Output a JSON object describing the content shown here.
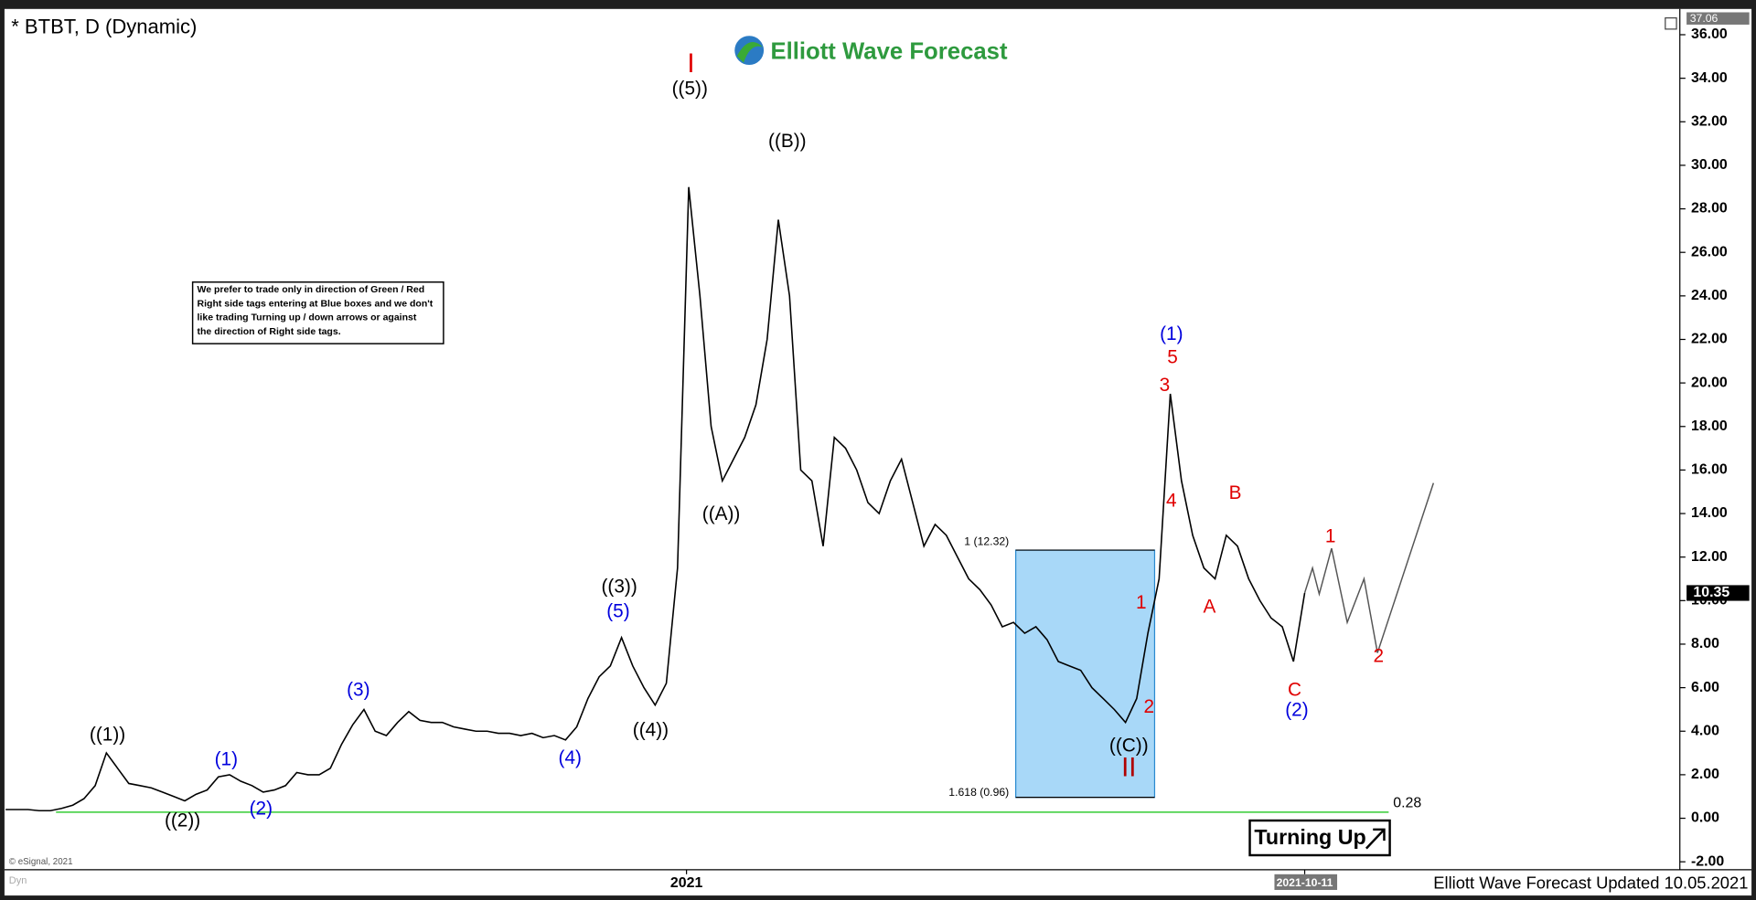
{
  "chart_data": {
    "type": "line",
    "title": "* BTBT, D (Dynamic)",
    "logo": "Elliott Wave Forecast",
    "footer": "Elliott Wave Forecast Updated 10.05.2021",
    "source": "© eSignal, 2021",
    "mode": "Dyn",
    "note": [
      "We prefer to trade only in direction of Green / Red",
      "Right side tags entering at Blue boxes and we don't",
      "like trading Turning up / down arrows or against",
      "the direction of Right side tags."
    ],
    "signal": "Turning Up",
    "xlim": [
      -0.5,
      149.5
    ],
    "xticks": [
      {
        "value": 60.8,
        "label": "2021"
      },
      {
        "value": 116,
        "label": "2021-10-11"
      }
    ],
    "ylim": [
      -2.3,
      37.06
    ],
    "yticks": [
      {
        "value": -2,
        "label": "-2.00"
      },
      {
        "value": 0,
        "label": "0.00"
      },
      {
        "value": 2,
        "label": "2.00"
      },
      {
        "value": 4,
        "label": "4.00"
      },
      {
        "value": 6,
        "label": "6.00"
      },
      {
        "value": 8,
        "label": "8.00"
      },
      {
        "value": 10,
        "label": "10.00"
      },
      {
        "value": 12,
        "label": "12.00"
      },
      {
        "value": 14,
        "label": "14.00"
      },
      {
        "value": 16,
        "label": "16.00"
      },
      {
        "value": 18,
        "label": "18.00"
      },
      {
        "value": 20,
        "label": "20.00"
      },
      {
        "value": 22,
        "label": "22.00"
      },
      {
        "value": 24,
        "label": "24.00"
      },
      {
        "value": 26,
        "label": "26.00"
      },
      {
        "value": 28,
        "label": "28.00"
      },
      {
        "value": 30,
        "label": "30.00"
      },
      {
        "value": 32,
        "label": "32.00"
      },
      {
        "value": 34,
        "label": "34.00"
      },
      {
        "value": 36,
        "label": "36.00"
      }
    ],
    "series": [
      {
        "color": "#000000",
        "values": [
          0.4,
          0.4,
          0.4,
          0.35,
          0.35,
          0.45,
          0.6,
          0.9,
          1.5,
          3.0,
          2.3,
          1.6,
          1.5,
          1.4,
          1.2,
          1.0,
          0.8,
          1.1,
          1.3,
          1.9,
          2.0,
          1.7,
          1.5,
          1.2,
          1.3,
          1.5,
          2.1,
          2.0,
          2.0,
          2.3,
          3.4,
          4.3,
          5.0,
          4.0,
          3.8,
          4.4,
          4.9,
          4.5,
          4.4,
          4.4,
          4.2,
          4.1,
          4.0,
          4.0,
          3.9,
          3.9,
          3.8,
          3.9,
          3.7,
          3.8,
          3.6,
          4.2,
          5.5,
          6.5,
          7.0,
          8.3,
          7.0,
          6.0,
          5.2,
          6.2,
          11.5,
          29.0,
          24.0,
          18.0,
          15.5,
          16.5,
          17.5,
          19.0,
          22.0,
          27.5,
          24.0,
          16.0,
          15.5,
          12.5,
          17.5,
          17.0,
          16.0,
          14.5,
          14.0,
          15.5,
          16.5,
          14.5,
          12.5,
          13.5,
          13.0,
          12.0,
          11.0,
          10.5,
          9.8,
          8.8,
          9.0,
          8.5,
          8.8,
          8.2,
          7.2,
          7.0,
          6.8,
          6.0,
          5.5,
          5.0,
          4.4,
          5.5,
          8.5,
          11.0,
          19.5,
          15.5,
          13.0,
          11.5,
          11.0,
          13.0,
          12.5,
          11.0,
          10.0,
          9.2,
          8.8,
          7.2,
          10.35
        ]
      },
      {
        "color": "#555555",
        "x": [
          116,
          116.7,
          117.3,
          118.4,
          119.8,
          121.3,
          122.5,
          127.5
        ],
        "values": [
          10.35,
          11.5,
          10.3,
          12.4,
          9.0,
          11.0,
          7.6,
          15.4
        ]
      }
    ],
    "hline": {
      "value": 0.28,
      "color": "#33cc33"
    },
    "fib_box": {
      "x": [
        90.2,
        102.6
      ],
      "top": 12.32,
      "bottom": 0.96,
      "top_label": "1 (12.32)",
      "bottom_label": "1.618 (0.96)",
      "color": "#a8d8f8"
    },
    "annotations": [
      {
        "text": "I",
        "color": "#e00000"
      },
      {
        "text": "((5))",
        "color": "#000000"
      },
      {
        "text": "((B))",
        "color": "#000000"
      },
      {
        "text": "((A))",
        "color": "#000000"
      },
      {
        "text": "((3))",
        "color": "#000000"
      },
      {
        "text": "(5)",
        "color": "#0000dd"
      },
      {
        "text": "((4))",
        "color": "#000000"
      },
      {
        "text": "(4)",
        "color": "#0000dd"
      },
      {
        "text": "(3)",
        "color": "#0000dd"
      },
      {
        "text": "((1))",
        "color": "#000000"
      },
      {
        "text": "(1)",
        "color": "#0000dd"
      },
      {
        "text": "((2))",
        "color": "#000000"
      },
      {
        "text": "(2)",
        "color": "#0000dd"
      },
      {
        "text": "((C))",
        "color": "#000000"
      },
      {
        "text": "II",
        "color": "#b00000"
      },
      {
        "text": "1",
        "color": "#e00000"
      },
      {
        "text": "2",
        "color": "#e00000"
      },
      {
        "text": "(1)",
        "color": "#0000dd"
      },
      {
        "text": "5",
        "color": "#e00000"
      },
      {
        "text": "3",
        "color": "#e00000"
      },
      {
        "text": "4",
        "color": "#e00000"
      },
      {
        "text": "B",
        "color": "#e00000"
      },
      {
        "text": "A",
        "color": "#e00000"
      },
      {
        "text": "C",
        "color": "#e00000"
      },
      {
        "text": "(2)",
        "color": "#0000dd"
      },
      {
        "text": "1",
        "color": "#e00000"
      },
      {
        "text": "2",
        "color": "#e00000"
      }
    ]
  }
}
